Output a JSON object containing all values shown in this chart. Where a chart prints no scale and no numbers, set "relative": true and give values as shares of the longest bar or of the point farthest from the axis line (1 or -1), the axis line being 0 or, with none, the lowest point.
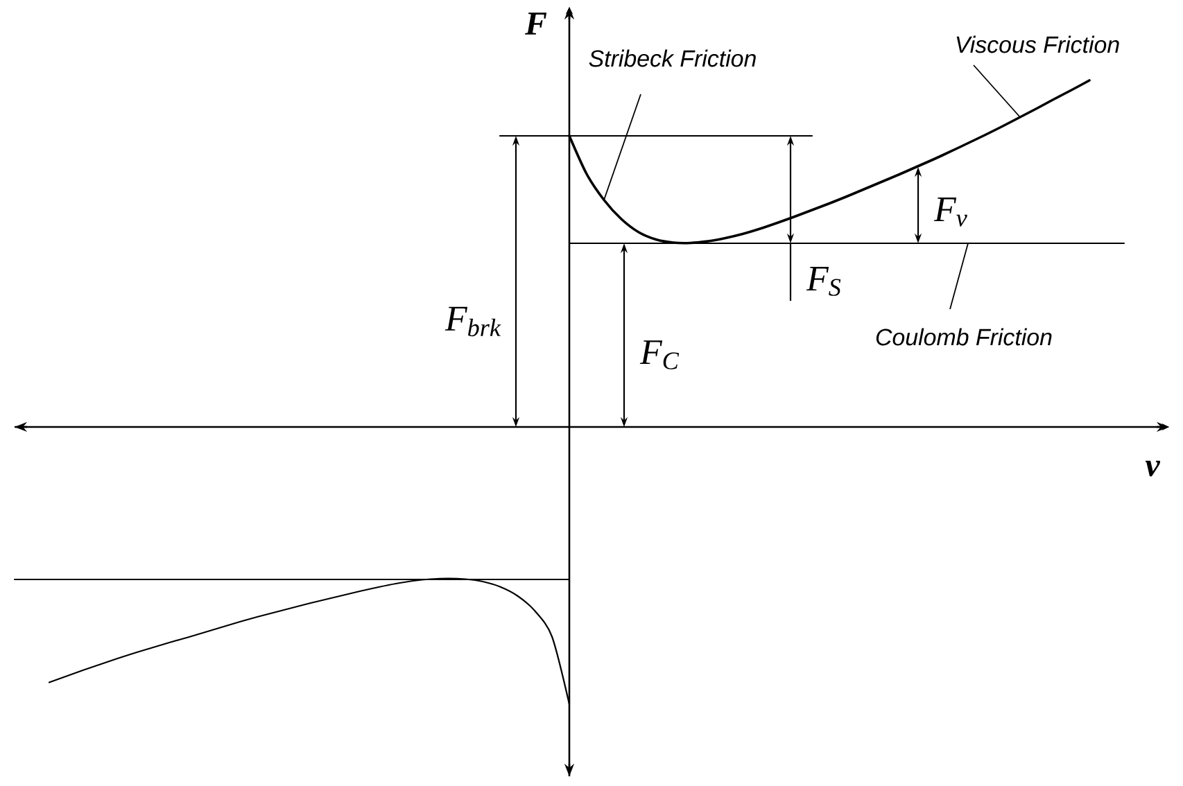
{
  "chart_data": {
    "type": "line",
    "relative": true,
    "xlabel": "v",
    "ylabel": "F",
    "marker": "none",
    "line_style": "solid",
    "categories": [
      null,
      null,
      null,
      null,
      null,
      null,
      null,
      null,
      null,
      null,
      null,
      null,
      null,
      null,
      null,
      null,
      null,
      null,
      null,
      null,
      null,
      null,
      null,
      null,
      null,
      null,
      null,
      null,
      null,
      null,
      null,
      null,
      null,
      null,
      null,
      null,
      null,
      null,
      null,
      null,
      null,
      null,
      null,
      null,
      null,
      null,
      null,
      null,
      null,
      null,
      null,
      null,
      null,
      null,
      null,
      null,
      null,
      null,
      null,
      null,
      null,
      null,
      null,
      null,
      null
    ],
    "series": [
      {
        "color": "#000000",
        "values": [
          null,
          null,
          null,
          null,
          null,
          null,
          null,
          null,
          null,
          null,
          null,
          null,
          null,
          null,
          null,
          null,
          null,
          null,
          null,
          null,
          null,
          null,
          null,
          null,
          null,
          null,
          null,
          null,
          null,
          null,
          null,
          null,
          0.84,
          0.73,
          0.655,
          0.6,
          0.562,
          0.541,
          0.532,
          0.531,
          0.536,
          0.545,
          0.557,
          0.572,
          0.589,
          0.607,
          0.626,
          0.645,
          0.665,
          0.686,
          0.707,
          0.728,
          0.75,
          0.772,
          0.795,
          0.819,
          0.843,
          0.868,
          0.894,
          0.92,
          0.947,
          0.973,
          1.0,
          null,
          null
        ]
      },
      {
        "color": "#000000",
        "values": [
          null,
          null,
          -0.737,
          -0.719,
          -0.701,
          -0.684,
          -0.667,
          -0.651,
          -0.636,
          -0.621,
          -0.607,
          -0.592,
          -0.577,
          -0.562,
          -0.548,
          -0.535,
          -0.522,
          -0.509,
          -0.497,
          -0.485,
          -0.473,
          -0.462,
          -0.452,
          -0.444,
          -0.439,
          -0.437,
          -0.439,
          -0.446,
          -0.461,
          -0.487,
          -0.53,
          -0.605,
          -0.8,
          null,
          null,
          null,
          null,
          null,
          null,
          null,
          null,
          null,
          null,
          null,
          null,
          null,
          null,
          null,
          null,
          null,
          null,
          null,
          null,
          null,
          null,
          null,
          null,
          null,
          null,
          null,
          null,
          null,
          null,
          null,
          null
        ]
      },
      {
        "color": "#000000",
        "values": [
          null,
          null,
          null,
          null,
          null,
          null,
          null,
          null,
          null,
          null,
          null,
          null,
          null,
          null,
          null,
          null,
          null,
          null,
          null,
          null,
          null,
          null,
          null,
          null,
          null,
          null,
          null,
          null,
          0.84,
          0.84,
          0.84,
          0.84,
          0.84,
          0.84,
          0.84,
          0.84,
          0.84,
          0.84,
          0.84,
          0.84,
          0.84,
          0.84,
          0.84,
          0.84,
          0.84,
          0.84,
          0.84,
          null,
          null,
          null,
          null,
          null,
          null,
          null,
          null,
          null,
          null,
          null,
          null,
          null,
          null,
          null,
          null,
          null,
          null
        ]
      },
      {
        "color": "#000000",
        "values": [
          null,
          null,
          null,
          null,
          null,
          null,
          null,
          null,
          null,
          null,
          null,
          null,
          null,
          null,
          null,
          null,
          null,
          null,
          null,
          null,
          null,
          null,
          null,
          null,
          null,
          null,
          null,
          null,
          null,
          null,
          null,
          null,
          0.53,
          0.53,
          0.53,
          0.53,
          0.53,
          0.53,
          0.53,
          0.53,
          0.53,
          0.53,
          0.53,
          0.53,
          0.53,
          0.53,
          0.53,
          0.53,
          0.53,
          0.53,
          0.53,
          0.53,
          0.53,
          0.53,
          0.53,
          0.53,
          0.53,
          0.53,
          0.53,
          0.53,
          0.53,
          0.53,
          0.53,
          0.53,
          0.53
        ]
      },
      {
        "color": "#000000",
        "values": [
          -0.44,
          -0.44,
          -0.44,
          -0.44,
          -0.44,
          -0.44,
          -0.44,
          -0.44,
          -0.44,
          -0.44,
          -0.44,
          -0.44,
          -0.44,
          -0.44,
          -0.44,
          -0.44,
          -0.44,
          -0.44,
          -0.44,
          -0.44,
          -0.44,
          -0.44,
          -0.44,
          -0.44,
          -0.44,
          -0.44,
          -0.44,
          -0.44,
          -0.44,
          -0.44,
          -0.44,
          -0.44,
          -0.44,
          null,
          null,
          null,
          null,
          null,
          null,
          null,
          null,
          null,
          null,
          null,
          null,
          null,
          null,
          null,
          null,
          null,
          null,
          null,
          null,
          null,
          null,
          null,
          null,
          null,
          null,
          null,
          null,
          null,
          null,
          null,
          null
        ]
      }
    ],
    "annotations": [
      "Stribeck Friction",
      "Viscous Friction",
      "Coulomb Friction",
      "F$_{brk}$",
      "F$_{C}$",
      "F$_{S}$",
      "F$_{v}$"
    ]
  }
}
